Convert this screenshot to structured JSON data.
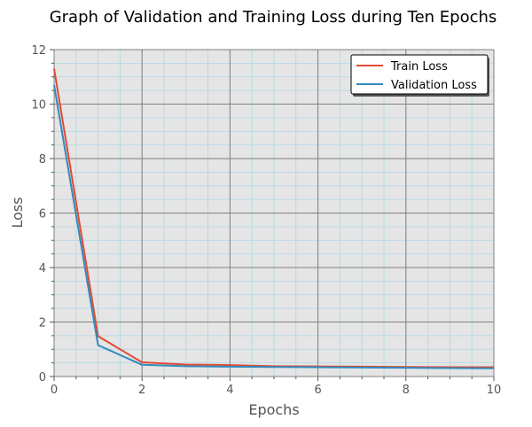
{
  "chart_data": {
    "type": "line",
    "title": "Graph of Validation and Training Loss during Ten Epochs",
    "xlabel": "Epochs",
    "ylabel": "Loss",
    "xlim": [
      0,
      10
    ],
    "ylim": [
      0,
      12
    ],
    "x_ticks": [
      "0",
      "2",
      "4",
      "6",
      "8",
      "10"
    ],
    "y_ticks": [
      "0",
      "2",
      "4",
      "6",
      "8",
      "10",
      "12"
    ],
    "x": [
      0,
      1,
      2,
      3,
      4,
      5,
      6,
      7,
      8,
      9,
      10
    ],
    "series": [
      {
        "name": "Train Loss",
        "color": "#E24A33",
        "values": [
          11.3,
          1.48,
          0.52,
          0.44,
          0.42,
          0.38,
          0.37,
          0.36,
          0.35,
          0.34,
          0.34
        ]
      },
      {
        "name": "Validation Loss",
        "color": "#348ABD",
        "values": [
          10.7,
          1.15,
          0.43,
          0.38,
          0.36,
          0.35,
          0.34,
          0.33,
          0.32,
          0.31,
          0.3
        ]
      }
    ],
    "grid": true,
    "minor_grid": true,
    "legend_position": "top-right",
    "background_color": "#E5E5E5",
    "major_grid_color": "#808080",
    "minor_grid_color": "#ADD8E6"
  }
}
